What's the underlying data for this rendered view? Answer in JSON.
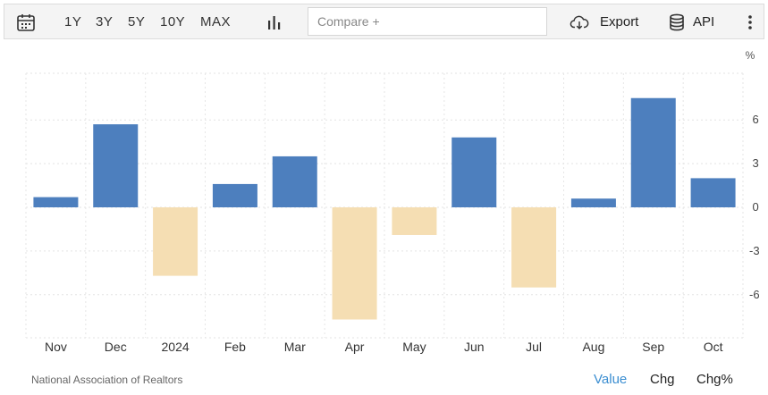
{
  "toolbar": {
    "ranges": [
      "1Y",
      "3Y",
      "5Y",
      "10Y",
      "MAX"
    ],
    "compare_placeholder": "Compare +",
    "export_label": "Export",
    "api_label": "API"
  },
  "footer": {
    "source": "National Association of Realtors",
    "tabs": [
      "Value",
      "Chg",
      "Chg%"
    ]
  },
  "colors": {
    "positive": "#4d7fbe",
    "negative": "#f5deb3",
    "active_tab": "#3b8ed1"
  },
  "chart_data": {
    "type": "bar",
    "unit": "%",
    "categories": [
      "Nov",
      "Dec",
      "2024",
      "Feb",
      "Mar",
      "Apr",
      "May",
      "Jun",
      "Jul",
      "Aug",
      "Sep",
      "Oct"
    ],
    "values": [
      0.7,
      5.7,
      -4.7,
      1.6,
      3.5,
      -7.7,
      -1.9,
      4.8,
      -5.5,
      0.6,
      7.5,
      2.0
    ],
    "yticks": [
      -6,
      -3,
      0,
      3,
      6
    ],
    "ylim": [
      -9,
      9
    ],
    "grid": true
  }
}
